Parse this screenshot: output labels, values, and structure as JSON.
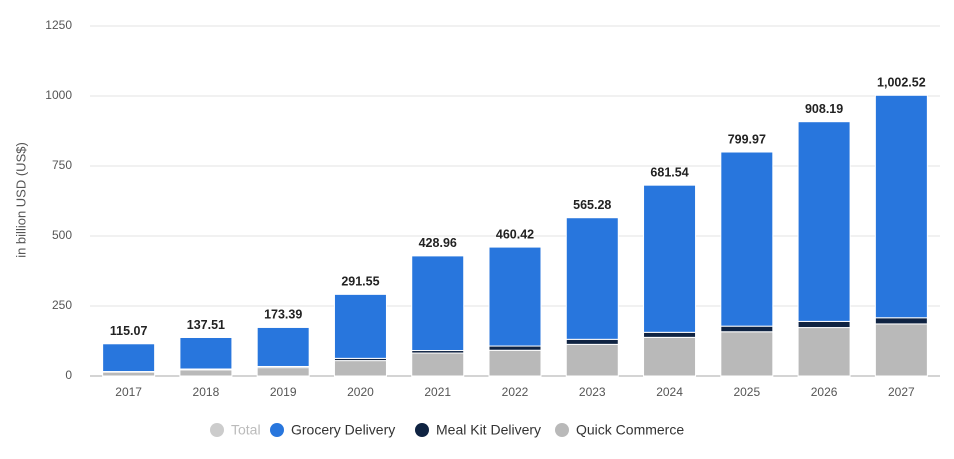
{
  "chart_data": {
    "type": "stacked-bar",
    "y_label": "in billion USD (US$)",
    "categories": [
      "2017",
      "2018",
      "2019",
      "2020",
      "2021",
      "2022",
      "2023",
      "2024",
      "2025",
      "2026",
      "2027"
    ],
    "series": [
      {
        "name": "Total",
        "color": "#cccccc",
        "visible": false,
        "values": [
          115.07,
          137.51,
          173.39,
          291.55,
          428.96,
          460.42,
          565.28,
          681.54,
          799.97,
          908.19,
          1002.52
        ],
        "value_labels": [
          "115.07",
          "137.51",
          "173.39",
          "291.55",
          "428.96",
          "460.42",
          "565.28",
          "681.54",
          "799.97",
          "908.19",
          "1,002.52"
        ]
      },
      {
        "name": "Grocery Delivery",
        "color": "#2876dd",
        "visible": true,
        "values": [
          99.07,
          112.51,
          139.39,
          228.55,
          337.96,
          353.42,
          434.28,
          525.54,
          621.97,
          713.19,
          794.52
        ]
      },
      {
        "name": "Meal Kit Delivery",
        "color": "#0f2342",
        "visible": true,
        "values": [
          2,
          3,
          4,
          8,
          9,
          15,
          18,
          18,
          20,
          22,
          22
        ]
      },
      {
        "name": "Quick Commerce",
        "color": "#b9b9b9",
        "visible": true,
        "values": [
          14,
          22,
          30,
          55,
          82,
          92,
          113,
          138,
          158,
          173,
          186
        ]
      }
    ],
    "ylim": [
      0,
      1250
    ],
    "yticks": [
      0,
      250,
      500,
      750,
      1000,
      1250
    ],
    "grid": true
  }
}
